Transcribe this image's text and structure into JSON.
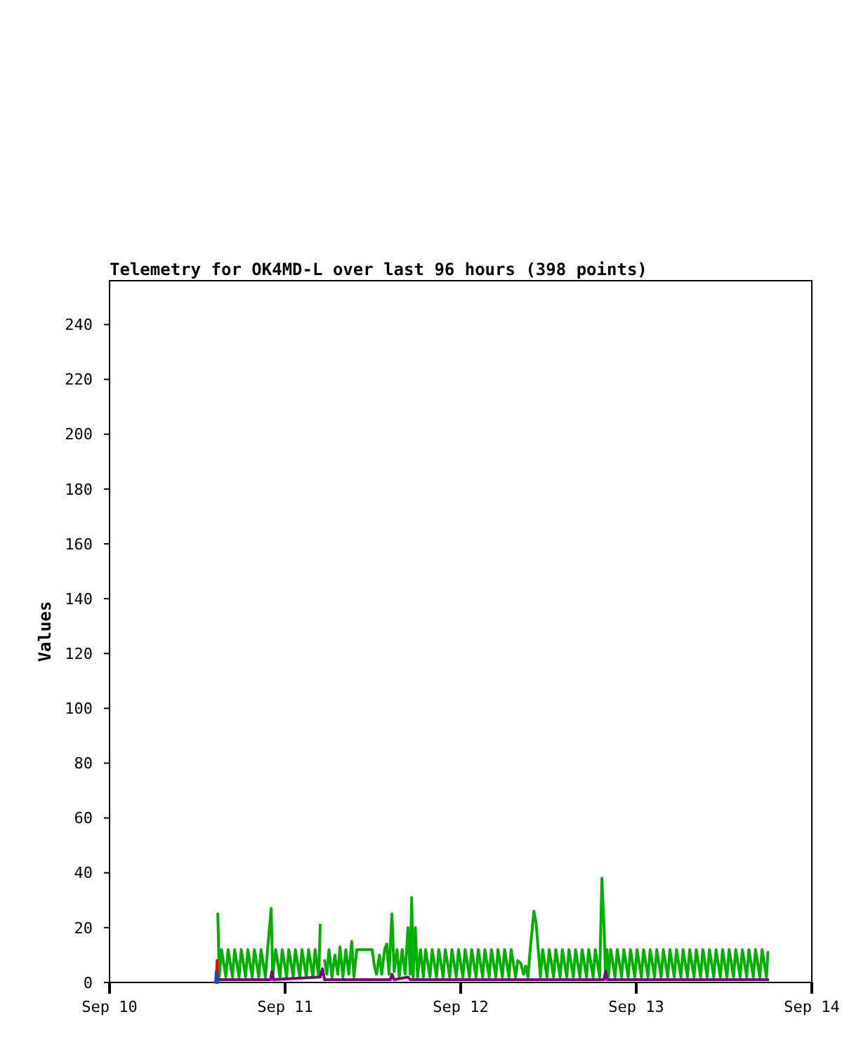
{
  "chart_data": {
    "type": "line",
    "title": "Telemetry for OK4MD-L over last 96 hours (398 points)",
    "ylabel": "Values",
    "xlim": [
      "--09-10",
      "--09-14"
    ],
    "xticks": [
      {
        "value": "--09-10",
        "label": "Sep 10"
      },
      {
        "value": "--09-11",
        "label": "Sep 11"
      },
      {
        "value": "--09-12",
        "label": "Sep 12"
      },
      {
        "value": "--09-13",
        "label": "Sep 13"
      },
      {
        "value": "--09-14",
        "label": "Sep 14"
      }
    ],
    "ylim": [
      0,
      256
    ],
    "yticks": [
      0,
      20,
      40,
      60,
      80,
      100,
      120,
      140,
      160,
      180,
      200,
      220,
      240
    ],
    "grid": false,
    "marker": "none",
    "line_style": "solid",
    "series": [
      {
        "color": "#00b000",
        "x": [
          "--09-10T14:48",
          "--09-10T15:00",
          "--09-10T15:18",
          "--09-10T15:54",
          "--09-10T16:12",
          "--09-10T16:48",
          "--09-10T17:06",
          "--09-10T17:42",
          "--09-10T18:00",
          "--09-10T18:36",
          "--09-10T18:54",
          "--09-10T19:30",
          "--09-10T19:48",
          "--09-10T20:24",
          "--09-10T20:42",
          "--09-10T21:18",
          "--09-10T21:36",
          "--09-10T22:06",
          "--09-10T22:18",
          "--09-10T22:42",
          "--09-10T23:18",
          "--09-10T23:36",
          "--09-11T00:12",
          "--09-11T00:30",
          "--09-11T01:06",
          "--09-11T01:24",
          "--09-11T02:00",
          "--09-11T02:18",
          "--09-11T02:54",
          "--09-11T03:12",
          "--09-11T03:48",
          "--09-11T04:06",
          "--09-11T04:36",
          "--09-11T04:48",
          "--09-11T05:00",
          "--09-11T05:06",
          "--09-11T05:12",
          "--09-11T05:24",
          "--09-11T05:42",
          "--09-11T06:00",
          "--09-11T06:24",
          "--09-11T06:48",
          "--09-11T07:12",
          "--09-11T07:30",
          "--09-11T07:54",
          "--09-11T08:18",
          "--09-11T08:42",
          "--09-11T09:06",
          "--09-11T09:24",
          "--09-11T09:48",
          "--09-11T10:12",
          "--09-11T11:30",
          "--09-11T11:54",
          "--09-11T12:12",
          "--09-11T12:30",
          "--09-11T12:54",
          "--09-11T13:12",
          "--09-11T13:36",
          "--09-11T13:54",
          "--09-11T14:12",
          "--09-11T14:36",
          "--09-11T14:54",
          "--09-11T15:18",
          "--09-11T15:36",
          "--09-11T16:00",
          "--09-11T16:24",
          "--09-11T16:48",
          "--09-11T17:06",
          "--09-11T17:18",
          "--09-11T17:30",
          "--09-11T17:48",
          "--09-11T18:06",
          "--09-11T18:30",
          "--09-11T18:54",
          "--09-11T19:12",
          "--09-11T19:48",
          "--09-11T20:06",
          "--09-11T20:42",
          "--09-11T21:00",
          "--09-11T21:36",
          "--09-11T21:54",
          "--09-11T22:30",
          "--09-11T22:48",
          "--09-11T23:24",
          "--09-11T23:42",
          "--09-12T00:18",
          "--09-12T00:36",
          "--09-12T01:12",
          "--09-12T01:30",
          "--09-12T02:06",
          "--09-12T02:24",
          "--09-12T03:00",
          "--09-12T03:18",
          "--09-12T03:54",
          "--09-12T04:12",
          "--09-12T04:48",
          "--09-12T05:06",
          "--09-12T05:42",
          "--09-12T06:00",
          "--09-12T06:36",
          "--09-12T06:54",
          "--09-12T07:30",
          "--09-12T07:48",
          "--09-12T08:12",
          "--09-12T08:36",
          "--09-12T08:54",
          "--09-12T09:12",
          "--09-12T09:30",
          "--09-12T09:48",
          "--09-12T10:00",
          "--09-12T10:18",
          "--09-12T10:36",
          "--09-12T10:54",
          "--09-12T11:12",
          "--09-12T11:48",
          "--09-12T12:06",
          "--09-12T12:42",
          "--09-12T13:00",
          "--09-12T13:36",
          "--09-12T13:54",
          "--09-12T14:30",
          "--09-12T14:48",
          "--09-12T15:24",
          "--09-12T15:42",
          "--09-12T16:18",
          "--09-12T16:36",
          "--09-12T17:12",
          "--09-12T17:30",
          "--09-12T18:06",
          "--09-12T18:24",
          "--09-12T19:00",
          "--09-12T19:18",
          "--09-12T19:36",
          "--09-12T19:48",
          "--09-12T20:00",
          "--09-12T20:12",
          "--09-12T20:30",
          "--09-12T21:06",
          "--09-12T21:24",
          "--09-12T22:00",
          "--09-12T22:18",
          "--09-12T22:54",
          "--09-12T23:12",
          "--09-12T23:48",
          "--09-13T00:06",
          "--09-13T00:42",
          "--09-13T01:00",
          "--09-13T01:36",
          "--09-13T01:54",
          "--09-13T02:30",
          "--09-13T02:48",
          "--09-13T03:24",
          "--09-13T03:42",
          "--09-13T04:18",
          "--09-13T04:36",
          "--09-13T05:12",
          "--09-13T05:30",
          "--09-13T06:06",
          "--09-13T06:24",
          "--09-13T07:00",
          "--09-13T07:18",
          "--09-13T07:54",
          "--09-13T08:12",
          "--09-13T08:48",
          "--09-13T09:06",
          "--09-13T09:42",
          "--09-13T10:00",
          "--09-13T10:36",
          "--09-13T10:54",
          "--09-13T11:30",
          "--09-13T11:48",
          "--09-13T12:24",
          "--09-13T12:42",
          "--09-13T13:18",
          "--09-13T13:36",
          "--09-13T14:12",
          "--09-13T14:30",
          "--09-13T15:06",
          "--09-13T15:24",
          "--09-13T16:00",
          "--09-13T16:18",
          "--09-13T16:54",
          "--09-13T17:12",
          "--09-13T17:48",
          "--09-13T18:00"
        ],
        "values": [
          25,
          2,
          12,
          2,
          12,
          2,
          12,
          2,
          12,
          2,
          12,
          2,
          12,
          2,
          12,
          2,
          12,
          27,
          2,
          12,
          2,
          12,
          2,
          12,
          2,
          12,
          2,
          12,
          2,
          12,
          2,
          12,
          2,
          21,
          null,
          null,
          null,
          8,
          3,
          12,
          2,
          10,
          3,
          13,
          2,
          12,
          3,
          15,
          2,
          12,
          12,
          12,
          12,
          6,
          3,
          10,
          3,
          12,
          14,
          3,
          25,
          4,
          12,
          2,
          12,
          3,
          20,
          3,
          31,
          2,
          20,
          2,
          12,
          2,
          12,
          2,
          12,
          2,
          12,
          2,
          12,
          2,
          12,
          2,
          12,
          2,
          12,
          2,
          12,
          2,
          12,
          2,
          12,
          2,
          12,
          2,
          12,
          2,
          12,
          2,
          12,
          2,
          8,
          7,
          3,
          6,
          2,
          12,
          20,
          26,
          22,
          12,
          2,
          12,
          2,
          12,
          2,
          12,
          2,
          12,
          2,
          12,
          2,
          12,
          2,
          12,
          2,
          12,
          2,
          12,
          2,
          38,
          20,
          2,
          12,
          2,
          12,
          2,
          12,
          2,
          12,
          2,
          12,
          2,
          12,
          2,
          12,
          2,
          12,
          2,
          12,
          2,
          12,
          2,
          12,
          2,
          12,
          2,
          12,
          2,
          12,
          2,
          12,
          2,
          12,
          2,
          12,
          2,
          12,
          2,
          12,
          2,
          12,
          2,
          12,
          2,
          12,
          2,
          12,
          2,
          12,
          2,
          12,
          2,
          11
        ]
      },
      {
        "color": "#800080",
        "x": [
          "--09-10T14:48",
          "--09-10T22:00",
          "--09-10T22:12",
          "--09-10T22:24",
          "--09-11T04:48",
          "--09-11T05:06",
          "--09-11T05:24",
          "--09-11T14:24",
          "--09-11T14:36",
          "--09-11T14:54",
          "--09-11T16:48",
          "--09-11T17:06",
          "--09-12T19:36",
          "--09-12T19:48",
          "--09-12T20:00",
          "--09-13T18:00"
        ],
        "values": [
          1,
          1,
          4,
          1,
          2,
          5,
          1,
          1,
          3,
          1,
          2,
          1,
          1,
          4,
          1,
          1
        ]
      },
      {
        "color": "#ff0000",
        "x": [
          "--09-10T14:36",
          "--09-10T14:42",
          "--09-10T14:48"
        ],
        "values": [
          0,
          8,
          0
        ]
      },
      {
        "color": "#0050d0",
        "x": [
          "--09-10T14:30",
          "--09-10T14:36",
          "--09-10T14:42"
        ],
        "values": [
          0,
          4,
          0
        ]
      }
    ]
  }
}
